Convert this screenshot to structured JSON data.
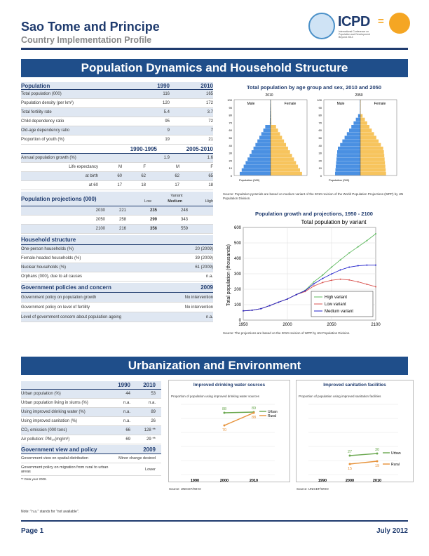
{
  "header": {
    "country": "Sao Tome and Principe",
    "subtitle": "Country Implementation Profile",
    "logo_text": "ICPD",
    "logo_small": "International Conference on Population and Development Beyond 2014"
  },
  "section1": {
    "title": "Population Dynamics and Household Structure"
  },
  "pop_table": {
    "header": [
      "Population",
      "1990",
      "2010"
    ],
    "rows": [
      [
        "Total population (000)",
        "116",
        "165"
      ],
      [
        "Population density (per km²)",
        "120",
        "172"
      ],
      [
        "Total fertility rate",
        "5.4",
        "3.7"
      ],
      [
        "Child dependency ratio",
        "95",
        "72"
      ],
      [
        "Old-age dependency ratio",
        "9",
        "7"
      ],
      [
        "Proportion of youth (%)",
        "19",
        "21"
      ]
    ],
    "period_header": [
      "1990-1995",
      "2005-2010"
    ],
    "growth_row": [
      "Annual population growth (%)",
      "1.9",
      "1.6"
    ],
    "life_row": [
      "Life expectancy",
      "M",
      "F",
      "M",
      "F"
    ],
    "birth_row": [
      "at birth",
      "60",
      "62",
      "62",
      "65"
    ],
    "sixty_row": [
      "at 60",
      "17",
      "18",
      "17",
      "18"
    ]
  },
  "projections": {
    "title": "Population projections (000)",
    "variant_label": "Variant",
    "cols": [
      "Low",
      "Medium",
      "High"
    ],
    "rows": [
      [
        "2030",
        "221",
        "235",
        "248"
      ],
      [
        "2050",
        "258",
        "299",
        "343"
      ],
      [
        "2100",
        "216",
        "356",
        "559"
      ]
    ]
  },
  "household": {
    "title": "Household structure",
    "rows": [
      [
        "One-person households (%)",
        "20 (2009)"
      ],
      [
        "Female-headed households (%)",
        "39 (2009)"
      ],
      [
        "Nuclear households (%)",
        "61 (2009)"
      ],
      [
        "Orphans (000), due to all causes",
        "n.a."
      ]
    ]
  },
  "policies": {
    "title": "Government policies and concern",
    "year": "2009",
    "rows": [
      [
        "Government policy on population growth",
        "No intervention"
      ],
      [
        "Government policy on level of fertility",
        "No intervention"
      ],
      [
        "Level of government concern about population ageing",
        "n.a."
      ]
    ]
  },
  "pyramid": {
    "title": "Total population by age group and sex, 2010 and 2050",
    "years": [
      "2010",
      "2050"
    ],
    "male_label": "Male",
    "female_label": "Female",
    "y_ticks": [
      "100",
      "90",
      "80",
      "70",
      "60",
      "50",
      "40",
      "30",
      "20",
      "10",
      "0"
    ],
    "x_label": "Population (000)",
    "source": "Source: Population pyramids are based on medium variant of the 2010 revision of the World Population Projections (WPP) by UN Population Division."
  },
  "growth_chart": {
    "title": "Population growth and projections, 1950 - 2100",
    "inner_title": "Total population by variant",
    "ylabel": "Total population (thousands)",
    "legend": [
      "High variant",
      "Low variant",
      "Medium variant"
    ],
    "source": "Source: The projections are based on the 2010 revision of WPP by UN Population Division."
  },
  "section2": {
    "title": "Urbanization and Environment"
  },
  "urban_table": {
    "header": [
      "",
      "1990",
      "2010"
    ],
    "rows": [
      [
        "Urban population (%)",
        "44",
        "53"
      ],
      [
        "Urban population living in slums (%)",
        "n.a.",
        "n.a."
      ],
      [
        "Using improved drinking water (%)",
        "n.a.",
        "89"
      ],
      [
        "Using improved sanitation (%)",
        "n.a.",
        "26"
      ],
      [
        "CO₂ emission (000 tons)",
        "66",
        "128 **"
      ],
      [
        "Air pollution: PM₁₀(mg/m³)",
        "69",
        "29 **"
      ]
    ],
    "view_title": "Government view and policy",
    "view_year": "2009",
    "view_rows": [
      [
        "Government view on spatial distribution",
        "Minor change desired"
      ],
      [
        "Government policy on migration from rural to urban areas",
        "Lower"
      ]
    ],
    "footnote": "** Data year 2008."
  },
  "water_chart": {
    "title": "Improved drinking water sources",
    "subtitle": "Proportion of population using improved drinking water sources",
    "source": "Source: UNICEF/WHO",
    "legend": [
      "Urban",
      "Rural"
    ]
  },
  "sanitation_chart": {
    "title": "Improved sanitation facilities",
    "subtitle": "Proportion of population using improved sanitation facilities",
    "source": "Source: UNICEF/WHO",
    "legend": [
      "Urban",
      "Rural"
    ]
  },
  "chart_data": [
    {
      "type": "line",
      "title": "Total population by variant",
      "xlabel": "",
      "ylabel": "Total population (thousands)",
      "x_ticks": [
        "1950",
        "2000",
        "2050",
        "2100"
      ],
      "y_ticks": [
        "0",
        "100",
        "200",
        "300",
        "400",
        "500",
        "600"
      ],
      "xlim": [
        1950,
        2100
      ],
      "ylim": [
        0,
        600
      ],
      "x": [
        1950,
        1960,
        1970,
        1980,
        1990,
        2000,
        2010,
        2020,
        2030,
        2040,
        2050,
        2060,
        2070,
        2080,
        2090,
        2100
      ],
      "series": [
        {
          "name": "High variant",
          "color": "#5cb85c",
          "values": [
            60,
            64,
            74,
            94,
            116,
            137,
            165,
            192,
            248,
            292,
            343,
            390,
            435,
            475,
            515,
            559
          ]
        },
        {
          "name": "Low variant",
          "color": "#d9534f",
          "values": [
            60,
            64,
            74,
            94,
            116,
            137,
            165,
            185,
            221,
            244,
            258,
            265,
            260,
            248,
            232,
            216
          ]
        },
        {
          "name": "Medium variant",
          "color": "#2222cc",
          "values": [
            60,
            64,
            74,
            94,
            116,
            137,
            165,
            190,
            235,
            270,
            299,
            325,
            343,
            352,
            356,
            356
          ]
        }
      ]
    },
    {
      "type": "line",
      "title": "Improved drinking water sources",
      "categories": [
        "1990",
        "2000",
        "2010"
      ],
      "series": [
        {
          "name": "Urban",
          "color": "#6aa84f",
          "values": [
            null,
            88,
            89
          ]
        },
        {
          "name": "Rural",
          "color": "#e69138",
          "values": [
            null,
            70,
            88
          ]
        }
      ]
    },
    {
      "type": "line",
      "title": "Improved sanitation facilities",
      "categories": [
        "1990",
        "2000",
        "2010"
      ],
      "series": [
        {
          "name": "Urban",
          "color": "#6aa84f",
          "values": [
            null,
            27,
            30
          ]
        },
        {
          "name": "Rural",
          "color": "#e69138",
          "values": [
            null,
            15,
            19
          ]
        }
      ]
    }
  ],
  "footer": {
    "note": "Note: \"n.a.\" stands for \"not available\".",
    "page": "Page 1",
    "date": "July 2012"
  }
}
